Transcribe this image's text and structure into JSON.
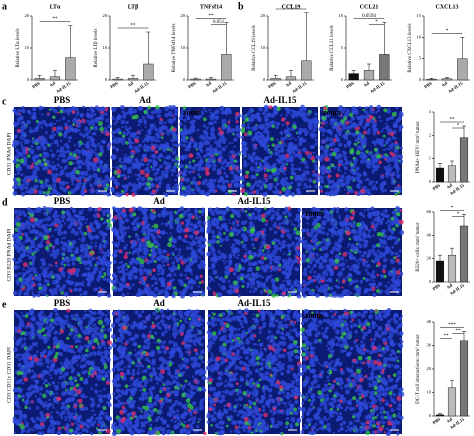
{
  "figure": {
    "panel_letters": [
      "a",
      "b"
    ],
    "rows": [
      {
        "letter": "c",
        "stain": "CD31 PNAd DAPI",
        "images": [
          "PBS",
          "Ad",
          "zoom",
          "Ad-IL15",
          "zoom"
        ]
      },
      {
        "letter": "d",
        "stain": "CD3 B220 PNAd DAPI",
        "images": [
          "PBS",
          "Ad",
          "Ad-IL15",
          "zoom"
        ]
      },
      {
        "letter": "e",
        "stain": "CD3 CD11c CD31 DAPI",
        "images": [
          "PBS",
          "Ad",
          "Ad-IL15",
          "zoom"
        ]
      }
    ]
  },
  "chart_data": [
    {
      "type": "bar",
      "title": "LTα",
      "y_label": "Relative LTα levels",
      "categories": [
        "PBS",
        "Ad",
        "Ad-IL15"
      ],
      "values": [
        0.5,
        1,
        7
      ],
      "errors": [
        1,
        2,
        10
      ],
      "colors": [
        "#aaaaaa",
        "#aaaaaa",
        "#aaaaaa"
      ],
      "ylim": [
        0,
        20
      ],
      "yticks": [
        0,
        10,
        20
      ],
      "annotations": [
        "**"
      ]
    },
    {
      "type": "bar",
      "title": "LTβ",
      "y_label": "Relative LTβ levels",
      "categories": [
        "PBS",
        "Ad",
        "Ad-IL15"
      ],
      "values": [
        0.3,
        0.5,
        5
      ],
      "errors": [
        0.5,
        1,
        10
      ],
      "colors": [
        "#aaaaaa",
        "#aaaaaa",
        "#aaaaaa"
      ],
      "ylim": [
        0,
        20
      ],
      "yticks": [
        0,
        10,
        20
      ],
      "annotations": [
        "**"
      ]
    },
    {
      "type": "bar",
      "title": "TNFsf14",
      "y_label": "Relative TNFsf14 levels",
      "categories": [
        "PBS",
        "Ad",
        "Ad-IL15"
      ],
      "values": [
        0.3,
        0.3,
        8
      ],
      "errors": [
        0.3,
        0.5,
        10
      ],
      "colors": [
        "#aaaaaa",
        "#aaaaaa",
        "#aaaaaa"
      ],
      "ylim": [
        0,
        20
      ],
      "yticks": [
        0,
        10,
        20
      ],
      "annotations": [
        "**",
        "0.051"
      ]
    },
    {
      "type": "bar",
      "title": "CCL19",
      "y_label": "Relative CCL19 levels",
      "categories": [
        "PBS",
        "Ad",
        "Ad-IL15"
      ],
      "values": [
        0.5,
        1,
        6
      ],
      "errors": [
        1,
        2,
        15
      ],
      "colors": [
        "#aaaaaa",
        "#aaaaaa",
        "#aaaaaa"
      ],
      "ylim": [
        0,
        20
      ],
      "yticks": [
        0,
        10,
        20
      ],
      "annotations": [
        "*"
      ]
    },
    {
      "type": "bar",
      "title": "CCL21",
      "y_label": "Relative CCL21 levels",
      "categories": [
        "PBS",
        "Ad",
        "Ad-IL15"
      ],
      "values": [
        1,
        1.5,
        4
      ],
      "errors": [
        0.5,
        1,
        5
      ],
      "colors": [
        "#111111",
        "#aaaaaa",
        "#777777"
      ],
      "ylim": [
        0,
        10
      ],
      "yticks": [
        0,
        5,
        10
      ],
      "annotations": [
        "0.0594",
        "*"
      ]
    },
    {
      "type": "bar",
      "title": "CXCL13",
      "y_label": "Relative CXCL13 levels",
      "categories": [
        "PBS",
        "Ad",
        "Ad-IL15"
      ],
      "values": [
        0.2,
        0.3,
        5
      ],
      "errors": [
        0.2,
        0.3,
        5
      ],
      "colors": [
        "#aaaaaa",
        "#aaaaaa",
        "#aaaaaa"
      ],
      "ylim": [
        0,
        15
      ],
      "yticks": [
        0,
        5,
        10,
        15
      ],
      "annotations": [
        "*"
      ]
    },
    {
      "type": "bar",
      "y_label": "PNAd+ HEV/ mm² tumor",
      "categories": [
        "PBS",
        "Ad",
        "Ad-IL15"
      ],
      "values": [
        0.6,
        0.7,
        1.9
      ],
      "errors": [
        0.2,
        0.2,
        0.5
      ],
      "colors": [
        "#111111",
        "#bbbbbb",
        "#777777"
      ],
      "ylim": [
        0,
        3
      ],
      "yticks": [
        0,
        1,
        2,
        3
      ],
      "annotations": [
        "**",
        "*"
      ]
    },
    {
      "type": "bar",
      "y_label": "B220+ cells/ mm² tumor",
      "categories": [
        "PBS",
        "Ad",
        "Ad-IL15"
      ],
      "values": [
        18,
        23,
        48
      ],
      "errors": [
        5,
        6,
        10
      ],
      "colors": [
        "#111111",
        "#bbbbbb",
        "#777777"
      ],
      "ylim": [
        0,
        60
      ],
      "yticks": [
        0,
        20,
        40,
        60
      ],
      "annotations": [
        "*",
        "*"
      ]
    },
    {
      "type": "bar",
      "y_label": "DC-T cell interactions/ mm² tumor",
      "categories": [
        "PBS",
        "Ad",
        "Ad-IL15"
      ],
      "values": [
        0.5,
        12,
        32
      ],
      "errors": [
        0.5,
        3,
        4
      ],
      "colors": [
        "#111111",
        "#bbbbbb",
        "#777777"
      ],
      "ylim": [
        0,
        40
      ],
      "yticks": [
        0,
        10,
        20,
        30,
        40
      ],
      "annotations": [
        "***",
        "**",
        "**"
      ]
    }
  ]
}
